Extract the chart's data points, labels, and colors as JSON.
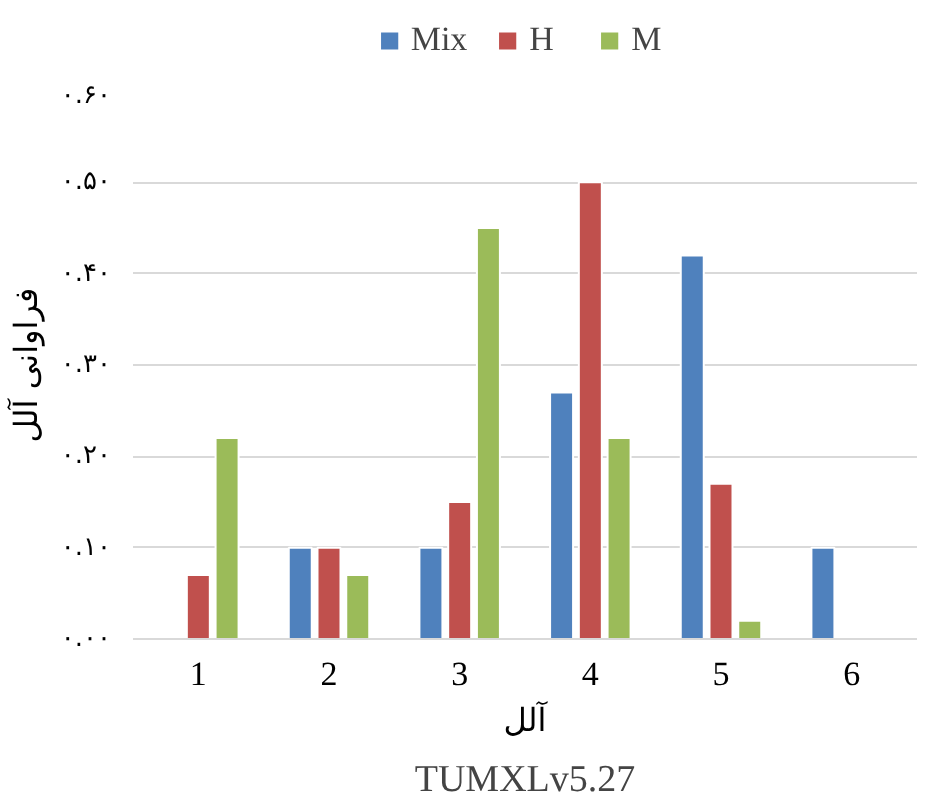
{
  "chart_data": {
    "type": "bar",
    "title": "TUMXLv5.27",
    "xlabel": "آلل",
    "ylabel": "فراوانی آلل",
    "categories": [
      "1",
      "2",
      "3",
      "4",
      "5",
      "6"
    ],
    "series": [
      {
        "name": "Mix",
        "color": "#4f81bd",
        "values": [
          null,
          0.1,
          0.1,
          0.27,
          0.42,
          0.1
        ]
      },
      {
        "name": "H",
        "color": "#c0504d",
        "values": [
          0.07,
          0.1,
          0.15,
          0.5,
          0.17,
          null
        ]
      },
      {
        "name": "M",
        "color": "#9bbb59",
        "values": [
          0.22,
          0.07,
          0.45,
          0.22,
          0.02,
          null
        ]
      }
    ],
    "ylim": [
      0,
      0.6
    ],
    "yticks": [
      {
        "value": 0,
        "label": "۰.۰۰"
      },
      {
        "value": 0.1,
        "label": "۰.۱۰"
      },
      {
        "value": 0.2,
        "label": "۰.۲۰"
      },
      {
        "value": 0.3,
        "label": "۰.۳۰"
      },
      {
        "value": 0.4,
        "label": "۰.۴۰"
      },
      {
        "value": 0.5,
        "label": "۰.۵۰"
      },
      {
        "value": 0.6,
        "label": "۰.۶۰"
      }
    ],
    "grid": "y",
    "legend": "top"
  }
}
